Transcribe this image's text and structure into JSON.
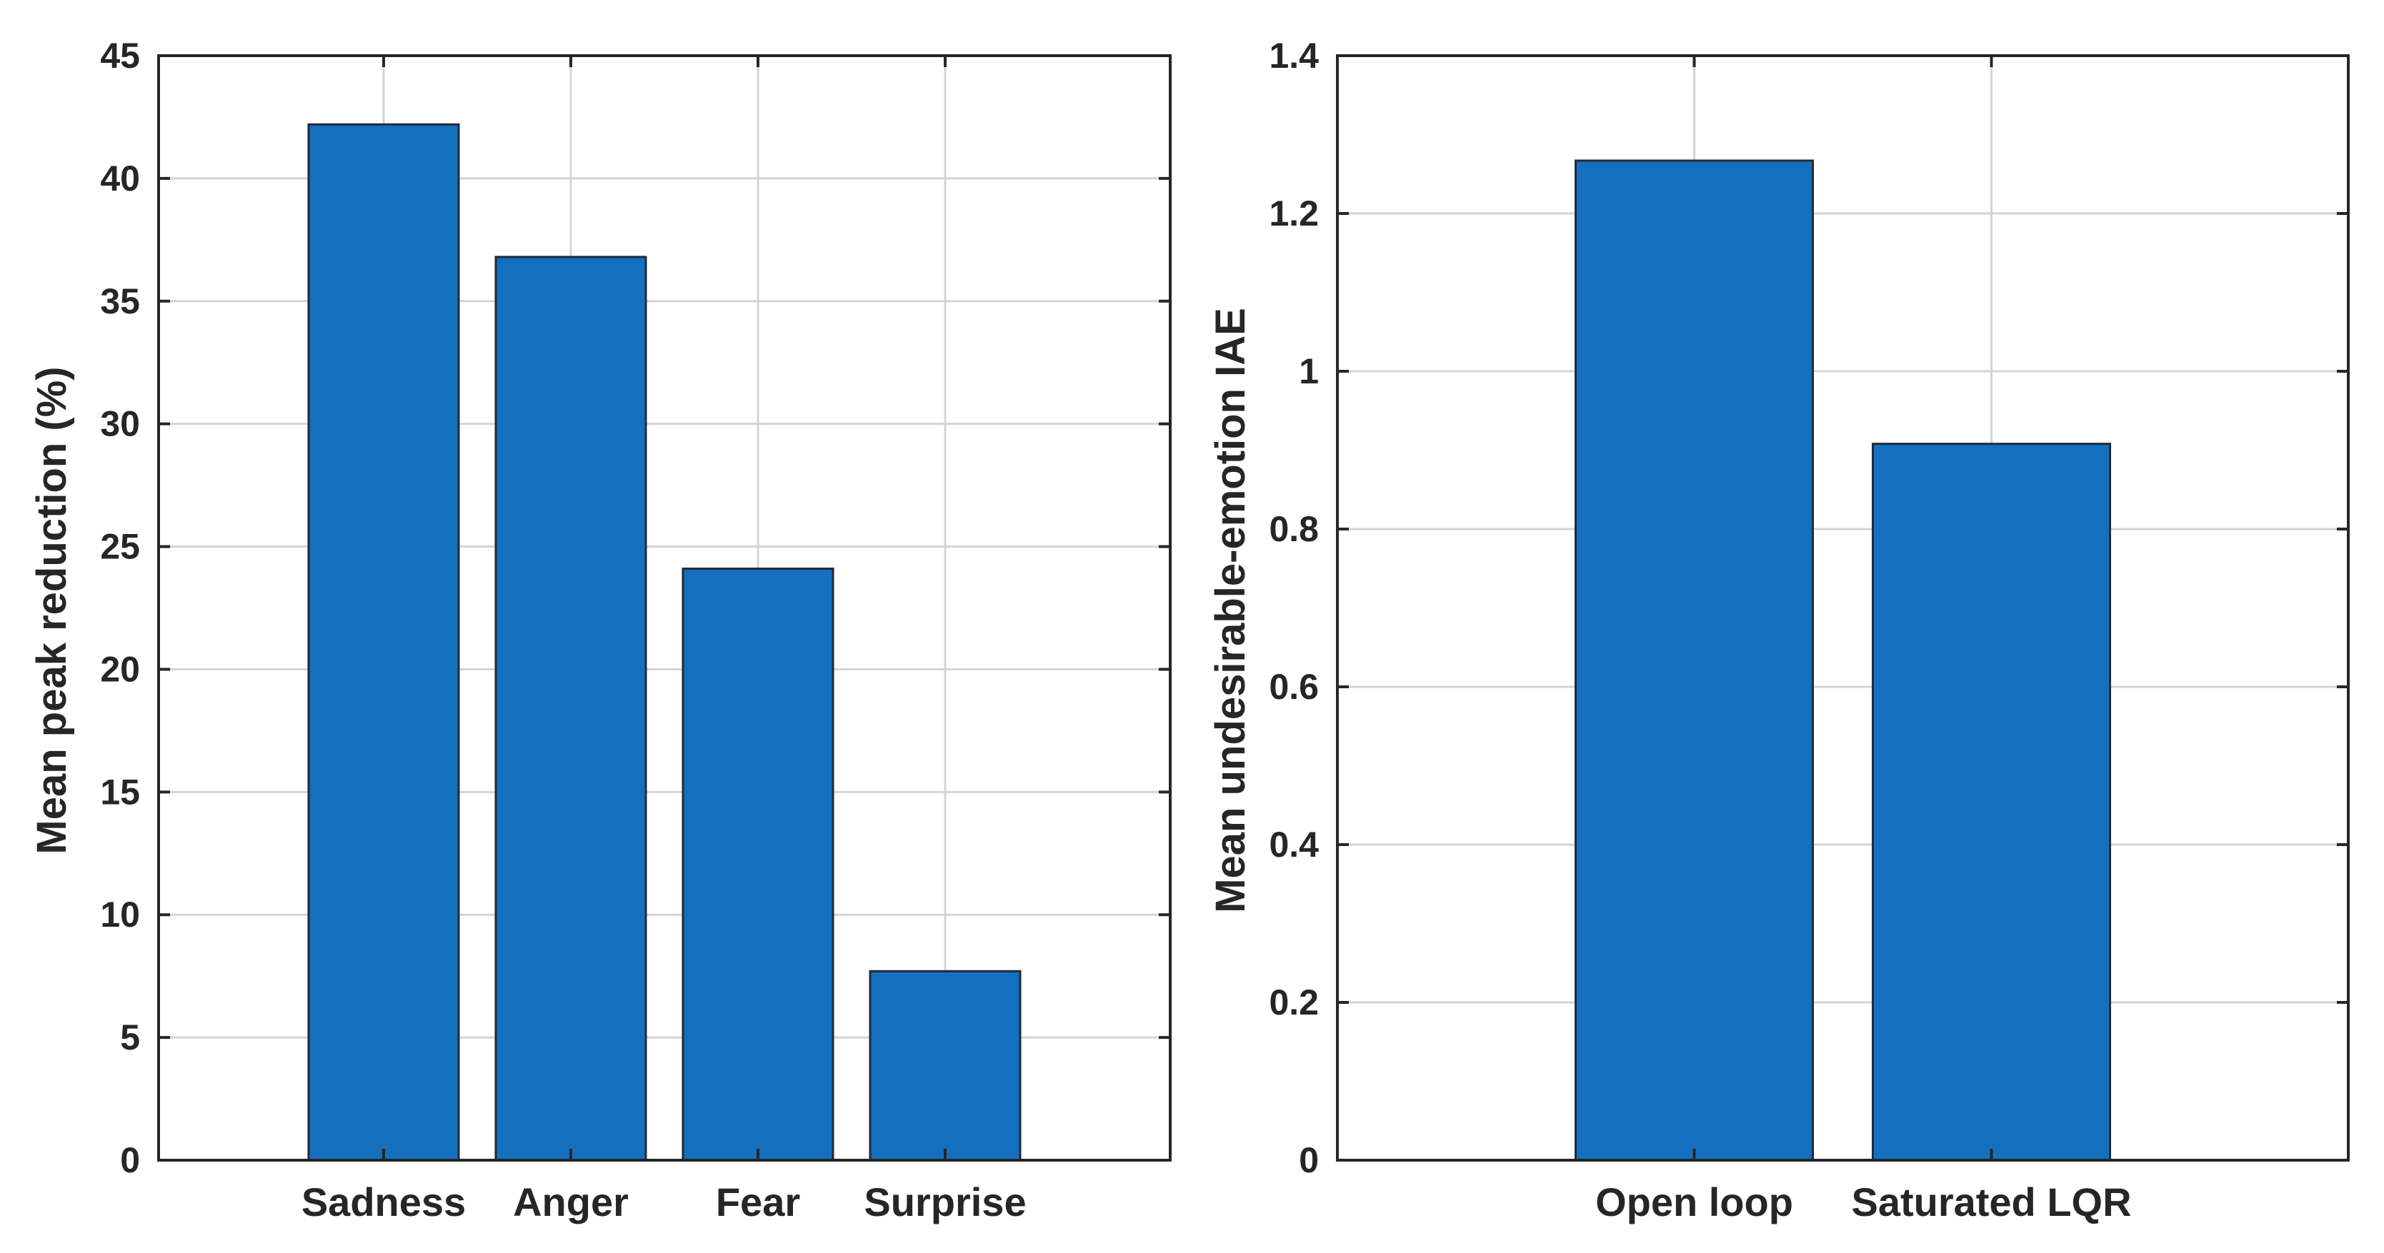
{
  "colors": {
    "bar_fill": "#1470BE",
    "bar_edge": "#1F2A3A",
    "axes": "#262626",
    "grid": "#D4D4D4",
    "background": "#FFFFFF"
  },
  "chart_data": [
    {
      "type": "bar",
      "categories": [
        "Sadness",
        "Anger",
        "Fear",
        "Surprise"
      ],
      "values": [
        42.2,
        36.8,
        24.1,
        7.7
      ],
      "title": "",
      "xlabel": "",
      "ylabel": "Mean peak reduction (%)",
      "ylim": [
        0,
        45
      ],
      "yticks": [
        "0",
        "5",
        "10",
        "15",
        "20",
        "25",
        "30",
        "35",
        "40",
        "45"
      ],
      "grid": true,
      "box": true
    },
    {
      "type": "bar",
      "categories": [
        "Open loop",
        "Saturated LQR"
      ],
      "values": [
        1.267,
        0.908
      ],
      "title": "",
      "xlabel": "",
      "ylabel": "Mean undesirable-emotion IAE",
      "ylim": [
        0,
        1.4
      ],
      "yticks": [
        "0",
        "0.2",
        "0.4",
        "0.6",
        "0.8",
        "1",
        "1.2",
        "1.4"
      ],
      "grid": true,
      "box": true
    }
  ]
}
